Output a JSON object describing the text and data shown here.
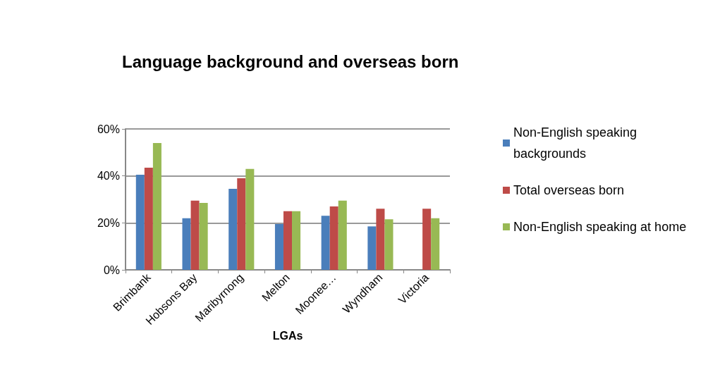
{
  "chart_data": {
    "type": "bar",
    "title": "Language background and overseas born",
    "xlabel": "LGAs",
    "categories": [
      "Brimbank",
      "Hobsons Bay",
      "Maribyrnong",
      "Melton",
      "Moonee…",
      "Wyndham",
      "Victoria"
    ],
    "series": [
      {
        "name": "Non-English speaking backgrounds",
        "color": "#4a7ebb",
        "values": [
          40.5,
          22,
          34.5,
          19.5,
          23,
          18.5,
          null
        ]
      },
      {
        "name": "Total overseas born",
        "color": "#be4b48",
        "values": [
          43.5,
          29.5,
          39,
          25,
          27,
          26,
          26
        ]
      },
      {
        "name": "Non-English speaking at home",
        "color": "#98b954",
        "values": [
          54,
          28.5,
          43,
          25,
          29.5,
          21.5,
          22
        ]
      }
    ],
    "ylim": [
      0,
      60
    ],
    "yticks": [
      {
        "value": 0,
        "label": "0%"
      },
      {
        "value": 20,
        "label": "20%"
      },
      {
        "value": 40,
        "label": "40%"
      },
      {
        "value": 60,
        "label": "60%"
      }
    ],
    "grid": "y",
    "legend": "right"
  }
}
